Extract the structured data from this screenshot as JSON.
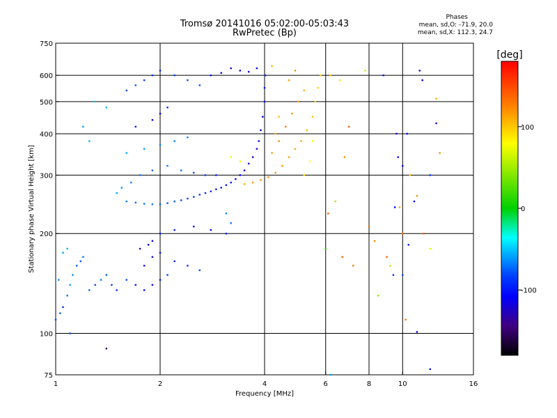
{
  "chart_data": {
    "type": "scatter",
    "title": "Tromsø 20141016 05:02:00-05:03:43",
    "subtitle": "RwPretec (Bp)",
    "xlabel": "Frequency [MHz]",
    "ylabel": "Stationary phase Virtual Height [km]",
    "x_scale": "log",
    "y_scale": "log",
    "xlim": [
      1,
      16
    ],
    "ylim": [
      75,
      750
    ],
    "x_ticks": [
      1,
      2,
      4,
      6,
      8,
      10,
      16
    ],
    "x_tick_labels": [
      "1",
      "2",
      "4",
      "6",
      "8",
      "10",
      "16"
    ],
    "y_ticks": [
      75,
      100,
      200,
      300,
      400,
      500,
      600,
      750
    ],
    "y_tick_labels": [
      "75",
      "100",
      "200",
      "300",
      "400",
      "500",
      "600",
      "750"
    ],
    "x_gridlines": [
      2,
      4,
      6,
      8,
      10
    ],
    "y_gridlines": [
      100,
      200,
      300,
      400,
      500,
      600
    ],
    "grid": true,
    "colorbar": {
      "label": "[deg]",
      "range": [
        -180,
        180
      ],
      "ticks": [
        100,
        0,
        -100
      ],
      "tick_labels": [
        "100",
        "0",
        "-100"
      ],
      "colors": [
        "#ff0000",
        "#ff8000",
        "#ffff00",
        "#00d000",
        "#00ffff",
        "#0040ff",
        "#0000ff",
        "#400080",
        "#000000"
      ]
    },
    "annotation": {
      "heading": "Phases",
      "line_o": "mean, sd,O: -71.9, 20.0",
      "line_x": "mean, sd,X: 112.3, 24.7"
    },
    "series": [
      {
        "mode": "O",
        "phase_mean": -71.9,
        "points": [
          [
            1.0,
            110,
            -80
          ],
          [
            1.03,
            115,
            -75
          ],
          [
            1.05,
            120,
            -85
          ],
          [
            1.08,
            130,
            -70
          ],
          [
            1.1,
            140,
            -60
          ],
          [
            1.12,
            150,
            -65
          ],
          [
            1.15,
            160,
            -75
          ],
          [
            1.18,
            165,
            -80
          ],
          [
            1.2,
            170,
            -70
          ],
          [
            1.05,
            175,
            -60
          ],
          [
            1.08,
            180,
            -55
          ],
          [
            1.02,
            145,
            -65
          ],
          [
            1.25,
            135,
            -75
          ],
          [
            1.3,
            140,
            -80
          ],
          [
            1.35,
            145,
            -70
          ],
          [
            1.4,
            150,
            -75
          ],
          [
            1.45,
            140,
            -85
          ],
          [
            1.5,
            135,
            -90
          ],
          [
            1.6,
            145,
            -80
          ],
          [
            1.7,
            140,
            -100
          ],
          [
            1.8,
            135,
            -110
          ],
          [
            1.9,
            140,
            -105
          ],
          [
            2.0,
            145,
            -95
          ],
          [
            2.1,
            150,
            -85
          ],
          [
            1.8,
            160,
            -120
          ],
          [
            1.9,
            170,
            -115
          ],
          [
            2.0,
            175,
            -100
          ],
          [
            1.75,
            180,
            -125
          ],
          [
            1.85,
            185,
            -110
          ],
          [
            2.2,
            165,
            -100
          ],
          [
            2.4,
            160,
            -90
          ],
          [
            2.6,
            155,
            -80
          ],
          [
            1.6,
            250,
            -70
          ],
          [
            1.7,
            248,
            -72
          ],
          [
            1.8,
            246,
            -68
          ],
          [
            1.9,
            245,
            -70
          ],
          [
            2.0,
            245,
            -75
          ],
          [
            2.1,
            247,
            -80
          ],
          [
            2.2,
            250,
            -78
          ],
          [
            2.3,
            252,
            -82
          ],
          [
            2.4,
            255,
            -85
          ],
          [
            2.5,
            258,
            -88
          ],
          [
            2.6,
            262,
            -90
          ],
          [
            2.7,
            265,
            -92
          ],
          [
            2.8,
            268,
            -95
          ],
          [
            2.9,
            272,
            -98
          ],
          [
            3.0,
            275,
            -100
          ],
          [
            3.1,
            280,
            -105
          ],
          [
            3.2,
            285,
            -108
          ],
          [
            3.3,
            292,
            -110
          ],
          [
            3.4,
            300,
            -112
          ],
          [
            3.5,
            310,
            -115
          ],
          [
            3.6,
            325,
            -118
          ],
          [
            3.7,
            340,
            -120
          ],
          [
            3.8,
            360,
            -115
          ],
          [
            3.85,
            380,
            -112
          ],
          [
            3.9,
            410,
            -110
          ],
          [
            3.95,
            450,
            -108
          ],
          [
            4.0,
            500,
            -105
          ],
          [
            4.0,
            550,
            -100
          ],
          [
            4.02,
            600,
            -95
          ],
          [
            1.5,
            265,
            -60
          ],
          [
            1.55,
            275,
            -62
          ],
          [
            1.65,
            285,
            -66
          ],
          [
            1.75,
            300,
            -70
          ],
          [
            1.9,
            310,
            -75
          ],
          [
            2.1,
            320,
            -70
          ],
          [
            2.3,
            310,
            -72
          ],
          [
            2.5,
            305,
            -80
          ],
          [
            2.7,
            300,
            -85
          ],
          [
            2.9,
            300,
            -95
          ],
          [
            1.6,
            350,
            -60
          ],
          [
            1.8,
            360,
            -62
          ],
          [
            2.0,
            370,
            -66
          ],
          [
            2.2,
            380,
            -70
          ],
          [
            2.4,
            390,
            -68
          ],
          [
            1.7,
            420,
            -100
          ],
          [
            1.9,
            440,
            -110
          ],
          [
            2.0,
            460,
            -105
          ],
          [
            2.1,
            480,
            -95
          ],
          [
            1.6,
            540,
            -80
          ],
          [
            1.7,
            560,
            -75
          ],
          [
            1.8,
            580,
            -85
          ],
          [
            1.9,
            600,
            -90
          ],
          [
            2.0,
            620,
            -95
          ],
          [
            2.2,
            600,
            -85
          ],
          [
            2.4,
            580,
            -80
          ],
          [
            2.6,
            560,
            -78
          ],
          [
            2.8,
            600,
            -100
          ],
          [
            3.0,
            610,
            -110
          ],
          [
            3.2,
            630,
            -120
          ],
          [
            3.4,
            620,
            -115
          ],
          [
            3.6,
            615,
            -110
          ],
          [
            3.8,
            630,
            -105
          ],
          [
            1.3,
            500,
            -50
          ],
          [
            1.4,
            480,
            -55
          ],
          [
            1.2,
            420,
            -60
          ],
          [
            1.25,
            380,
            -55
          ],
          [
            2.0,
            200,
            -95
          ],
          [
            2.2,
            205,
            -100
          ],
          [
            2.5,
            210,
            -105
          ],
          [
            2.8,
            205,
            -110
          ],
          [
            3.1,
            200,
            -95
          ],
          [
            1.9,
            190,
            -120
          ],
          [
            1.4,
            90,
            -150
          ],
          [
            1.1,
            100,
            -80
          ],
          [
            3.1,
            230,
            -65
          ],
          [
            3.2,
            215,
            -70
          ]
        ]
      },
      {
        "mode": "X",
        "phase_mean": 112.3,
        "points": [
          [
            3.5,
            282,
            110
          ],
          [
            3.7,
            285,
            115
          ],
          [
            3.9,
            290,
            118
          ],
          [
            4.1,
            296,
            120
          ],
          [
            4.3,
            305,
            125
          ],
          [
            4.5,
            320,
            120
          ],
          [
            4.7,
            340,
            115
          ],
          [
            4.9,
            360,
            110
          ],
          [
            5.1,
            380,
            112
          ],
          [
            5.3,
            410,
            108
          ],
          [
            5.5,
            450,
            105
          ],
          [
            5.6,
            500,
            100
          ],
          [
            5.7,
            550,
            98
          ],
          [
            5.8,
            600,
            95
          ],
          [
            4.4,
            380,
            125
          ],
          [
            4.6,
            420,
            130
          ],
          [
            4.8,
            460,
            122
          ],
          [
            5.0,
            500,
            118
          ],
          [
            5.2,
            540,
            112
          ],
          [
            4.7,
            580,
            115
          ],
          [
            4.9,
            620,
            120
          ],
          [
            4.2,
            350,
            118
          ],
          [
            4.3,
            400,
            110
          ],
          [
            4.4,
            450,
            105
          ],
          [
            5.4,
            330,
            80
          ],
          [
            5.2,
            300,
            95
          ],
          [
            4.2,
            640,
            108
          ],
          [
            5.5,
            380,
            75
          ],
          [
            3.2,
            340,
            75
          ],
          [
            3.4,
            330,
            80
          ],
          [
            6.1,
            230,
            140
          ],
          [
            6.4,
            250,
            50
          ],
          [
            6.7,
            170,
            140
          ],
          [
            7.2,
            160,
            130
          ],
          [
            7.8,
            620,
            60
          ],
          [
            8.0,
            210,
            130
          ],
          [
            8.3,
            190,
            120
          ],
          [
            9.0,
            170,
            140
          ],
          [
            9.2,
            160,
            60
          ],
          [
            9.8,
            240,
            110
          ],
          [
            10.0,
            200,
            130
          ],
          [
            10.5,
            300,
            100
          ],
          [
            11.0,
            260,
            120
          ],
          [
            11.5,
            200,
            140
          ],
          [
            12.0,
            180,
            70
          ],
          [
            12.5,
            510,
            110
          ],
          [
            12.8,
            350,
            120
          ],
          [
            10.2,
            110,
            130
          ],
          [
            6.2,
            600,
            100
          ],
          [
            6.6,
            580,
            90
          ],
          [
            7.0,
            420,
            140
          ],
          [
            6.8,
            340,
            120
          ]
        ]
      },
      {
        "mode": "other",
        "points": [
          [
            6.2,
            75,
            -60
          ],
          [
            8.8,
            600,
            -100
          ],
          [
            9.5,
            240,
            -110
          ],
          [
            10.0,
            150,
            -80
          ],
          [
            10.0,
            320,
            -100
          ],
          [
            10.3,
            400,
            -110
          ],
          [
            10.4,
            185,
            -100
          ],
          [
            10.8,
            250,
            -110
          ],
          [
            11.2,
            620,
            -130
          ],
          [
            11.4,
            580,
            -110
          ],
          [
            12.0,
            300,
            -90
          ],
          [
            12.5,
            430,
            -130
          ],
          [
            11.0,
            101,
            -120
          ],
          [
            12.0,
            78,
            -100
          ],
          [
            8.5,
            130,
            40
          ],
          [
            9.4,
            150,
            -90
          ],
          [
            6.0,
            180,
            10
          ],
          [
            9.6,
            400,
            -130
          ],
          [
            9.7,
            340,
            -110
          ]
        ]
      }
    ]
  }
}
